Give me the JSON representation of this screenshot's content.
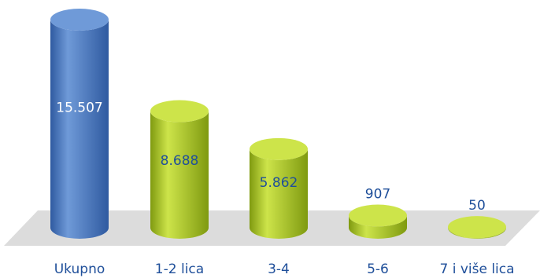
{
  "chart_data": {
    "type": "bar",
    "title": "",
    "xlabel": "",
    "ylabel": "",
    "categories": [
      "Ukupno",
      "1-2 lica",
      "3-4",
      "5-6",
      "7 i više lica"
    ],
    "values": [
      15507,
      8688,
      5862,
      907,
      50
    ],
    "data_labels": [
      "15.507",
      "8.688",
      "5.862",
      "907",
      "50"
    ],
    "ylim": [
      0,
      15507
    ],
    "grid": false,
    "legend": "none",
    "colors": {
      "total": "#4a78c0",
      "total_light": "#6f9ad8",
      "total_dark": "#2f5aa0",
      "group": "#a8c81c",
      "group_light": "#cde44a",
      "group_dark": "#7f9a10",
      "floor": "#dcdcdc",
      "label_on_blue": "#ffffff",
      "label": "#1f4f9a"
    }
  }
}
